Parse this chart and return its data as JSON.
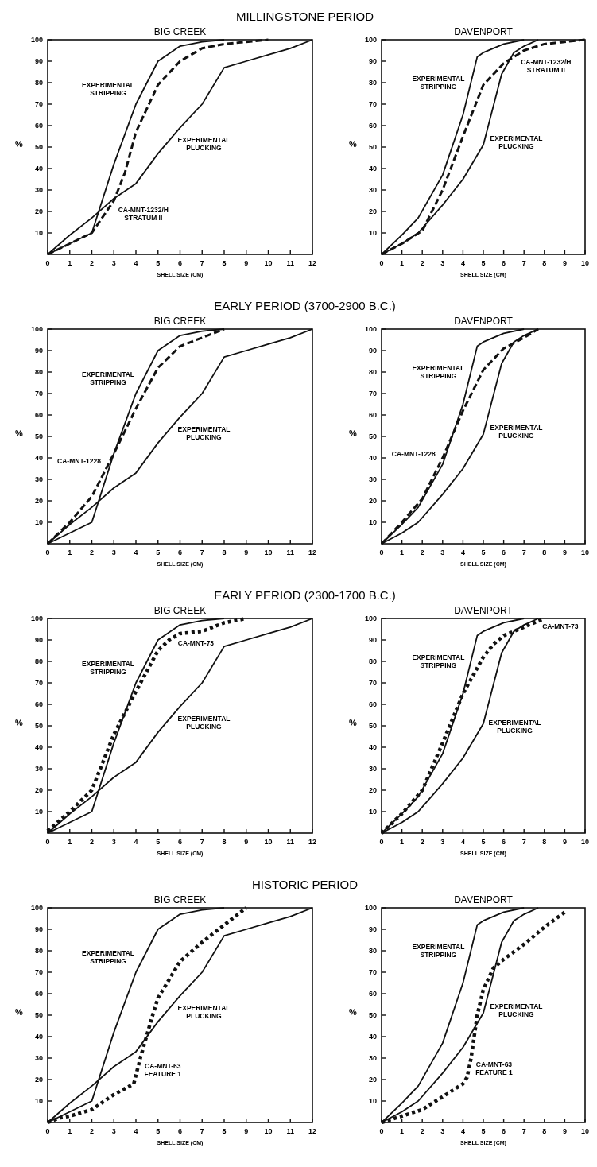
{
  "chart_data": [
    {
      "type": "line",
      "title": "MILLINGSTONE PERIOD",
      "subtitle": "BIG CREEK",
      "xlabel": "SHELL SIZE (CM)",
      "ylabel": "%",
      "xlim": [
        0,
        12
      ],
      "xticks": [
        0,
        1,
        2,
        3,
        4,
        5,
        6,
        7,
        8,
        9,
        10,
        11,
        12
      ],
      "ylim": [
        0,
        100
      ],
      "yticks": [
        10,
        20,
        30,
        40,
        50,
        60,
        70,
        80,
        90,
        100
      ],
      "legend": false,
      "grid": false,
      "marker": "none",
      "series": [
        {
          "name": "EXPERIMENTAL STRIPPING",
          "color": "#111111",
          "line_style": "solid",
          "x": [
            0,
            1,
            2,
            3,
            4,
            5,
            6,
            7,
            8
          ],
          "values": [
            0,
            5,
            10,
            42,
            70,
            90,
            97,
            99,
            100
          ]
        },
        {
          "name": "EXPERIMENTAL PLUCKING",
          "color": "#111111",
          "line_style": "solid",
          "x": [
            0,
            1,
            2,
            3,
            4,
            5,
            6,
            7,
            8,
            9,
            10,
            11,
            12
          ],
          "values": [
            0,
            9,
            17,
            26,
            33,
            47,
            59,
            70,
            87,
            90,
            93,
            96,
            100
          ]
        },
        {
          "name": "CA-MNT-1232/H STRATUM II",
          "color": "#111111",
          "line_style": "dashed",
          "x": [
            0,
            1,
            2,
            3,
            3.5,
            4,
            5,
            6,
            7,
            8,
            10
          ],
          "values": [
            0,
            5,
            10,
            25,
            38,
            57,
            79,
            90,
            96,
            98,
            100
          ]
        }
      ]
    },
    {
      "type": "line",
      "subtitle": "DAVENPORT",
      "xlabel": "SHELL SIZE (CM)",
      "ylabel": "%",
      "xlim": [
        0,
        10
      ],
      "xticks": [
        0,
        1,
        2,
        3,
        4,
        5,
        6,
        7,
        8,
        9,
        10
      ],
      "ylim": [
        0,
        100
      ],
      "yticks": [
        10,
        20,
        30,
        40,
        50,
        60,
        70,
        80,
        90,
        100
      ],
      "legend": false,
      "grid": false,
      "marker": "none",
      "series": [
        {
          "name": "EXPERIMENTAL STRIPPING",
          "color": "#111111",
          "line_style": "solid",
          "x": [
            0,
            1,
            1.8,
            3,
            4,
            4.7,
            5,
            6,
            7
          ],
          "values": [
            0,
            9,
            17,
            37,
            65,
            92,
            94,
            98,
            100
          ]
        },
        {
          "name": "EXPERIMENTAL PLUCKING",
          "color": "#111111",
          "line_style": "solid",
          "x": [
            0,
            1,
            1.8,
            3,
            4,
            5,
            5.9,
            6.5,
            7,
            7.7
          ],
          "values": [
            0,
            5,
            10,
            23,
            35,
            51,
            84,
            94,
            97,
            100
          ]
        },
        {
          "name": "CA-MNT-1232/H STRATUM II",
          "color": "#111111",
          "line_style": "dashed",
          "x": [
            0,
            1,
            2,
            3,
            4,
            5,
            5.5,
            6,
            7,
            8,
            10
          ],
          "values": [
            0,
            5,
            11,
            30,
            55,
            79,
            84,
            89,
            95,
            98,
            100
          ]
        }
      ]
    },
    {
      "type": "line",
      "title": "EARLY PERIOD (3700-2900 B.C.)",
      "subtitle": "BIG CREEK",
      "xlabel": "SHELL SIZE (CM)",
      "ylabel": "%",
      "xlim": [
        0,
        12
      ],
      "xticks": [
        0,
        1,
        2,
        3,
        4,
        5,
        6,
        7,
        8,
        9,
        10,
        11,
        12
      ],
      "ylim": [
        0,
        100
      ],
      "yticks": [
        10,
        20,
        30,
        40,
        50,
        60,
        70,
        80,
        90,
        100
      ],
      "legend": false,
      "grid": false,
      "marker": "none",
      "series": [
        {
          "name": "EXPERIMENTAL STRIPPING",
          "color": "#111111",
          "line_style": "solid",
          "x": [
            0,
            1,
            2,
            3,
            4,
            5,
            6,
            7,
            8
          ],
          "values": [
            0,
            5,
            10,
            42,
            70,
            90,
            97,
            99,
            100
          ]
        },
        {
          "name": "EXPERIMENTAL PLUCKING",
          "color": "#111111",
          "line_style": "solid",
          "x": [
            0,
            1,
            2,
            3,
            4,
            5,
            6,
            7,
            8,
            9,
            10,
            11,
            12
          ],
          "values": [
            0,
            9,
            17,
            26,
            33,
            47,
            59,
            70,
            87,
            90,
            93,
            96,
            100
          ]
        },
        {
          "name": "CA-MNT-1228",
          "color": "#111111",
          "line_style": "dashed",
          "x": [
            0,
            1,
            2,
            3,
            4,
            5,
            6,
            7,
            8
          ],
          "values": [
            0,
            10,
            22,
            42,
            63,
            82,
            92,
            96,
            100
          ]
        }
      ]
    },
    {
      "type": "line",
      "subtitle": "DAVENPORT",
      "xlabel": "SHELL SIZE (CM)",
      "ylabel": "%",
      "xlim": [
        0,
        10
      ],
      "xticks": [
        0,
        1,
        2,
        3,
        4,
        5,
        6,
        7,
        8,
        9,
        10
      ],
      "ylim": [
        0,
        100
      ],
      "yticks": [
        10,
        20,
        30,
        40,
        50,
        60,
        70,
        80,
        90,
        100
      ],
      "legend": false,
      "grid": false,
      "marker": "none",
      "series": [
        {
          "name": "EXPERIMENTAL STRIPPING",
          "color": "#111111",
          "line_style": "solid",
          "x": [
            0,
            1,
            1.8,
            3,
            4,
            4.7,
            5,
            6,
            7
          ],
          "values": [
            0,
            9,
            17,
            37,
            65,
            92,
            94,
            98,
            100
          ]
        },
        {
          "name": "EXPERIMENTAL PLUCKING",
          "color": "#111111",
          "line_style": "solid",
          "x": [
            0,
            1,
            1.8,
            3,
            4,
            5,
            5.9,
            6.5,
            7,
            7.7
          ],
          "values": [
            0,
            5,
            10,
            23,
            35,
            51,
            84,
            94,
            97,
            100
          ]
        },
        {
          "name": "CA-MNT-1228",
          "color": "#111111",
          "line_style": "dashed",
          "x": [
            0,
            1,
            2,
            3,
            4,
            5,
            6,
            7,
            7.7
          ],
          "values": [
            0,
            10,
            21,
            40,
            62,
            81,
            91,
            96,
            100
          ]
        }
      ]
    },
    {
      "type": "line",
      "title": "EARLY PERIOD (2300-1700 B.C.)",
      "subtitle": "BIG CREEK",
      "xlabel": "SHELL SIZE (CM)",
      "ylabel": "%",
      "xlim": [
        0,
        12
      ],
      "xticks": [
        0,
        1,
        2,
        3,
        4,
        5,
        6,
        7,
        8,
        9,
        10,
        11,
        12
      ],
      "ylim": [
        0,
        100
      ],
      "yticks": [
        10,
        20,
        30,
        40,
        50,
        60,
        70,
        80,
        90,
        100
      ],
      "legend": false,
      "grid": false,
      "marker": "none",
      "series": [
        {
          "name": "EXPERIMENTAL STRIPPING",
          "color": "#111111",
          "line_style": "solid",
          "x": [
            0,
            1,
            2,
            3,
            4,
            5,
            6,
            7,
            8
          ],
          "values": [
            0,
            5,
            10,
            42,
            70,
            90,
            97,
            99,
            100
          ]
        },
        {
          "name": "EXPERIMENTAL PLUCKING",
          "color": "#111111",
          "line_style": "solid",
          "x": [
            0,
            1,
            2,
            3,
            4,
            5,
            6,
            7,
            8,
            9,
            10,
            11,
            12
          ],
          "values": [
            0,
            9,
            17,
            26,
            33,
            47,
            59,
            70,
            87,
            90,
            93,
            96,
            100
          ]
        },
        {
          "name": "CA-MNT-73",
          "color": "#111111",
          "line_style": "dotted",
          "x": [
            0,
            1,
            2,
            3,
            4,
            5,
            5.5,
            6,
            7,
            8,
            9
          ],
          "values": [
            1,
            10,
            20,
            46,
            66,
            85,
            90,
            93,
            94,
            98,
            100
          ]
        }
      ]
    },
    {
      "type": "line",
      "subtitle": "DAVENPORT",
      "xlabel": "SHELL SIZE (CM)",
      "ylabel": "%",
      "xlim": [
        0,
        10
      ],
      "xticks": [
        0,
        1,
        2,
        3,
        4,
        5,
        6,
        7,
        8,
        9,
        10
      ],
      "ylim": [
        0,
        100
      ],
      "yticks": [
        10,
        20,
        30,
        40,
        50,
        60,
        70,
        80,
        90,
        100
      ],
      "legend": false,
      "grid": false,
      "marker": "none",
      "series": [
        {
          "name": "EXPERIMENTAL STRIPPING",
          "color": "#111111",
          "line_style": "solid",
          "x": [
            0,
            1,
            1.8,
            3,
            4,
            4.7,
            5,
            6,
            7
          ],
          "values": [
            0,
            9,
            17,
            37,
            65,
            92,
            94,
            98,
            100
          ]
        },
        {
          "name": "EXPERIMENTAL PLUCKING",
          "color": "#111111",
          "line_style": "solid",
          "x": [
            0,
            1,
            1.8,
            3,
            4,
            5,
            5.9,
            6.5,
            7,
            7.7
          ],
          "values": [
            0,
            5,
            10,
            23,
            35,
            51,
            84,
            94,
            97,
            100
          ]
        },
        {
          "name": "CA-MNT-73",
          "color": "#111111",
          "line_style": "dotted",
          "x": [
            0,
            1,
            2,
            3,
            4,
            5,
            5.5,
            6,
            7,
            8
          ],
          "values": [
            0,
            9,
            20,
            42,
            65,
            82,
            88,
            92,
            96,
            100
          ]
        }
      ]
    },
    {
      "type": "line",
      "title": "HISTORIC PERIOD",
      "subtitle": "BIG CREEK",
      "xlabel": "SHELL SIZE (CM)",
      "ylabel": "%",
      "xlim": [
        0,
        12
      ],
      "xticks": [
        0,
        1,
        2,
        3,
        4,
        5,
        6,
        7,
        8,
        9,
        10,
        11,
        12
      ],
      "ylim": [
        0,
        100
      ],
      "yticks": [
        10,
        20,
        30,
        40,
        50,
        60,
        70,
        80,
        90,
        100
      ],
      "legend": false,
      "grid": false,
      "marker": "none",
      "series": [
        {
          "name": "EXPERIMENTAL STRIPPING",
          "color": "#111111",
          "line_style": "solid",
          "x": [
            0,
            1,
            2,
            3,
            4,
            5,
            6,
            7,
            8
          ],
          "values": [
            0,
            5,
            10,
            42,
            70,
            90,
            97,
            99,
            100
          ]
        },
        {
          "name": "EXPERIMENTAL PLUCKING",
          "color": "#111111",
          "line_style": "solid",
          "x": [
            0,
            1,
            2,
            3,
            4,
            5,
            6,
            7,
            8,
            9,
            10,
            11,
            12
          ],
          "values": [
            0,
            9,
            17,
            26,
            33,
            47,
            59,
            70,
            87,
            90,
            93,
            96,
            100
          ]
        },
        {
          "name": "CA-MNT-63 FEATURE 1",
          "color": "#111111",
          "line_style": "dotted",
          "x": [
            0,
            0.5,
            1,
            2,
            3,
            3.9,
            4.2,
            4.7,
            5,
            6,
            7,
            8,
            9
          ],
          "values": [
            0,
            2,
            3,
            6,
            13,
            18,
            30,
            48,
            58,
            75,
            84,
            92,
            100
          ]
        }
      ]
    },
    {
      "type": "line",
      "subtitle": "DAVENPORT",
      "xlabel": "SHELL SIZE (CM)",
      "ylabel": "%",
      "xlim": [
        0,
        10
      ],
      "xticks": [
        0,
        1,
        2,
        3,
        4,
        5,
        6,
        7,
        8,
        9,
        10
      ],
      "ylim": [
        0,
        100
      ],
      "yticks": [
        10,
        20,
        30,
        40,
        50,
        60,
        70,
        80,
        90,
        100
      ],
      "legend": false,
      "grid": false,
      "marker": "none",
      "series": [
        {
          "name": "EXPERIMENTAL STRIPPING",
          "color": "#111111",
          "line_style": "solid",
          "x": [
            0,
            1,
            1.8,
            3,
            4,
            4.7,
            5,
            6,
            7
          ],
          "values": [
            0,
            9,
            17,
            37,
            65,
            92,
            94,
            98,
            100
          ]
        },
        {
          "name": "EXPERIMENTAL PLUCKING",
          "color": "#111111",
          "line_style": "solid",
          "x": [
            0,
            1,
            1.8,
            3,
            4,
            5,
            5.9,
            6.5,
            7,
            7.7
          ],
          "values": [
            0,
            5,
            10,
            23,
            35,
            51,
            84,
            94,
            97,
            100
          ]
        },
        {
          "name": "CA-MNT-63 FEATURE 1",
          "color": "#111111",
          "line_style": "dotted",
          "x": [
            0,
            1,
            2,
            3,
            4,
            4.2,
            4.4,
            4.7,
            5,
            5.5,
            6,
            7,
            8,
            9
          ],
          "values": [
            0,
            3,
            6,
            12,
            18,
            21,
            30,
            50,
            62,
            72,
            76,
            83,
            91,
            98
          ]
        }
      ]
    }
  ]
}
